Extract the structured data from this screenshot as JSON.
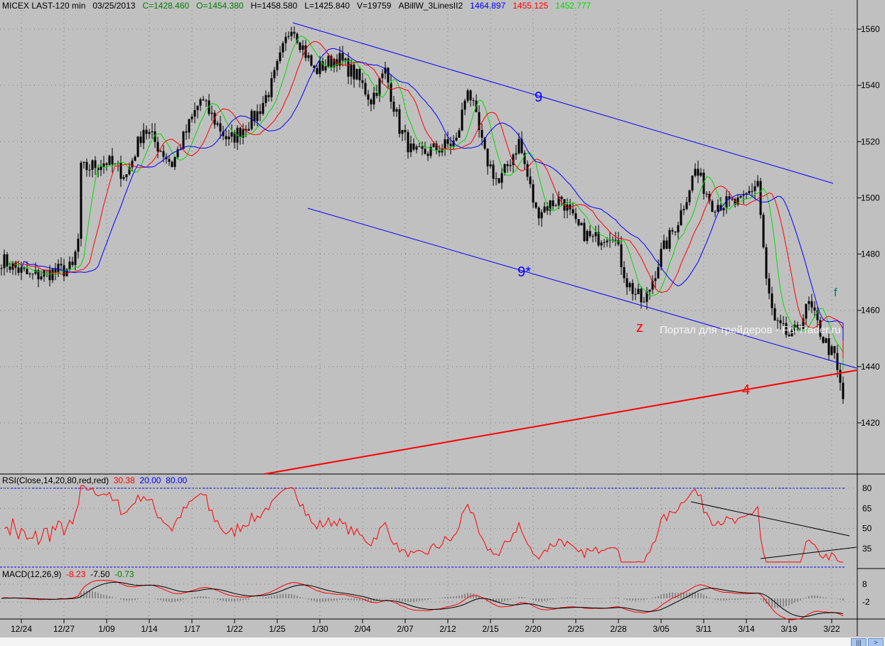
{
  "header": {
    "symbol": "MICEX LAST-120 min",
    "date": "03/25/2013",
    "close": "C=1428.460",
    "open": "O=1454.380",
    "high": "H=1458.580",
    "low": "L=1425.840",
    "volume": "V=19759",
    "indicator": "ABillW_3LinesII2",
    "ma_blue": "1464.897",
    "ma_red": "1455.125",
    "ma_green": "1452.777"
  },
  "rsi": {
    "label": "RSI(Close,14,20,80,red,red)",
    "value": "30.38",
    "low": "20.00",
    "high": "80.00"
  },
  "macd": {
    "label": "MACD(12,26,9)",
    "macd": "-8.23",
    "signal": "-7.50",
    "hist": "-0.73"
  },
  "annotations": {
    "line_9": "9",
    "line_9star": "9*",
    "wave_z": "z",
    "line_4": "4",
    "wave_f": "f"
  },
  "watermark": "Портал для трейдеров - ForTrader.ru",
  "colors": {
    "blue": "#0000ff",
    "red": "#ff0000",
    "green": "#00dd00",
    "bg": "#c0c0c0"
  },
  "chart_data": {
    "type": "line",
    "title": "MICEX LAST-120 min",
    "price_axis": {
      "ticks": [
        1420,
        1440,
        1460,
        1480,
        1500,
        1520,
        1540,
        1560
      ],
      "ylim": [
        1404,
        1570
      ]
    },
    "rsi_axis": {
      "ticks": [
        35,
        50,
        65,
        80
      ]
    },
    "macd_axis": {
      "ticks": [
        -2,
        8
      ]
    },
    "x_tick_labels": [
      "12/24",
      "12/27",
      "1/09",
      "1/14",
      "1/17",
      "1/22",
      "1/25",
      "1/30",
      "2/04",
      "2/07",
      "2/12",
      "2/15",
      "2/20",
      "2/25",
      "2/28",
      "3/05",
      "3/11",
      "3/14",
      "3/19",
      "3/22"
    ],
    "close_path": [
      [
        0,
        1478
      ],
      [
        10,
        1472
      ],
      [
        25,
        1475
      ],
      [
        27,
        1485
      ],
      [
        28,
        1510
      ],
      [
        37,
        1513
      ],
      [
        44,
        1508
      ],
      [
        50,
        1525
      ],
      [
        60,
        1512
      ],
      [
        70,
        1535
      ],
      [
        80,
        1520
      ],
      [
        90,
        1530
      ],
      [
        95,
        1540
      ],
      [
        102,
        1562
      ],
      [
        110,
        1545
      ],
      [
        118,
        1550
      ],
      [
        125,
        1543
      ],
      [
        130,
        1535
      ],
      [
        135,
        1545
      ],
      [
        140,
        1525
      ],
      [
        145,
        1515
      ],
      [
        152,
        1517
      ],
      [
        160,
        1520
      ],
      [
        164,
        1540
      ],
      [
        170,
        1515
      ],
      [
        175,
        1505
      ],
      [
        182,
        1520
      ],
      [
        188,
        1495
      ],
      [
        197,
        1500
      ],
      [
        202,
        1490
      ],
      [
        208,
        1485
      ],
      [
        215,
        1488
      ],
      [
        220,
        1470
      ],
      [
        226,
        1462
      ],
      [
        232,
        1480
      ],
      [
        238,
        1492
      ],
      [
        244,
        1510
      ],
      [
        250,
        1498
      ],
      [
        260,
        1498
      ],
      [
        266,
        1506
      ],
      [
        269,
        1470
      ],
      [
        272,
        1455
      ],
      [
        278,
        1450
      ],
      [
        284,
        1462
      ],
      [
        289,
        1450
      ],
      [
        293,
        1443
      ],
      [
        296,
        1428
      ]
    ]
  }
}
